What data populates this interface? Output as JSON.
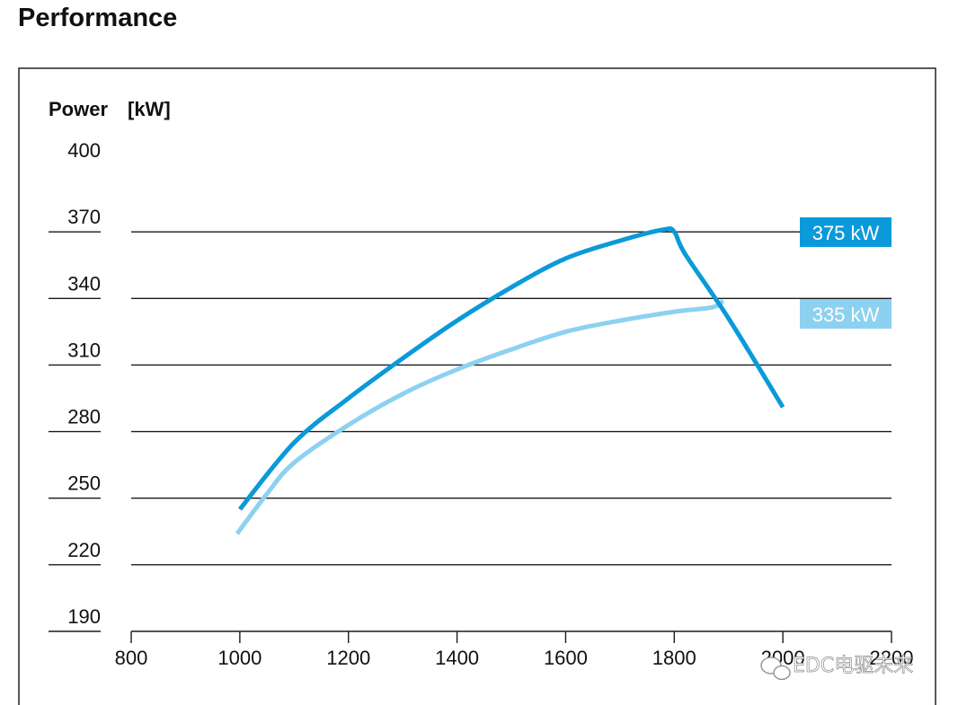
{
  "page": {
    "title": "Performance"
  },
  "chart_data": {
    "type": "line",
    "title": "Performance",
    "ylabel": "Power",
    "yunit": "[kW]",
    "xlabel": "",
    "xlim": [
      800,
      2200
    ],
    "ylim": [
      190,
      400
    ],
    "x_ticks": [
      "800",
      "1000",
      "1200",
      "1400",
      "1600",
      "1800",
      "2000",
      "2200"
    ],
    "x_tick_values": [
      800,
      1000,
      1200,
      1400,
      1600,
      1800,
      2000,
      2200
    ],
    "y_ticks": [
      "190",
      "220",
      "250",
      "280",
      "310",
      "340",
      "370",
      "400"
    ],
    "y_tick_values": [
      190,
      220,
      250,
      280,
      310,
      340,
      370,
      400
    ],
    "grid_values": [
      220,
      250,
      280,
      310,
      340,
      370
    ],
    "series": [
      {
        "label": "375 kW",
        "color": "#0b9ad9",
        "x": [
          1000,
          1100,
          1200,
          1300,
          1400,
          1500,
          1600,
          1700,
          1780,
          1800,
          1820,
          1900,
          2000
        ],
        "y": [
          245,
          275,
          295,
          313,
          330,
          345,
          358,
          366,
          371,
          370,
          360,
          331,
          291
        ]
      },
      {
        "label": "335 kW",
        "color": "#8dd1f0",
        "x": [
          995,
          1050,
          1100,
          1200,
          1300,
          1400,
          1500,
          1600,
          1700,
          1800,
          1870,
          1890
        ],
        "y": [
          234,
          252,
          266,
          283,
          297,
          308,
          317,
          325,
          330,
          334,
          336,
          339
        ]
      }
    ]
  },
  "watermark": {
    "text": "EDC电驱未来",
    "icon": "wechat-icon"
  }
}
